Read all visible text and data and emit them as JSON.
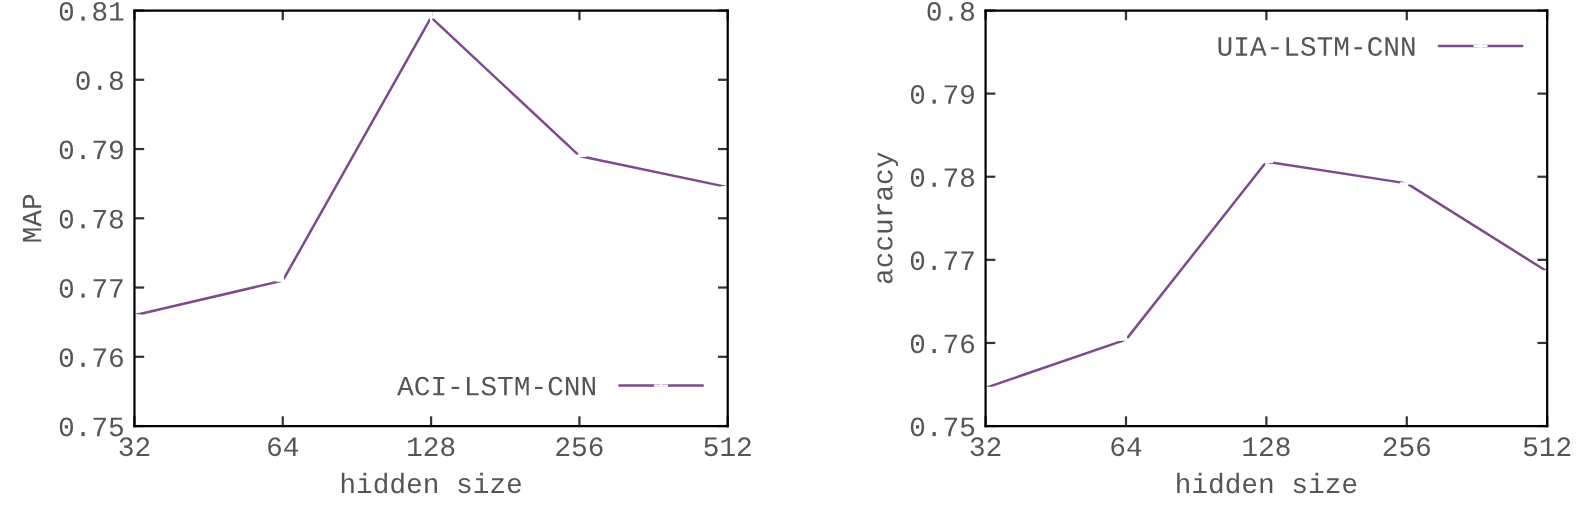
{
  "chart_data": [
    {
      "type": "line",
      "xlabel": "hidden size",
      "ylabel": "MAP",
      "categories": [
        "32",
        "64",
        "128",
        "256",
        "512"
      ],
      "series": [
        {
          "name": "ACI-LSTM-CNN",
          "color": "#7d4a8c",
          "values": [
            0.766,
            0.771,
            0.809,
            0.789,
            0.7845
          ]
        }
      ],
      "ylim": [
        0.75,
        0.81
      ],
      "yticks": [
        0.75,
        0.76,
        0.77,
        0.78,
        0.79,
        0.8,
        0.81
      ],
      "legend": "bottom right",
      "marker": "cross",
      "grid": false
    },
    {
      "type": "line",
      "xlabel": "hidden size",
      "ylabel": "accuracy",
      "categories": [
        "32",
        "64",
        "128",
        "256",
        "512"
      ],
      "series": [
        {
          "name": "UIA-LSTM-CNN",
          "color": "#7d4a8c",
          "values": [
            0.7546,
            0.7604,
            0.7818,
            0.7792,
            0.7686
          ]
        }
      ],
      "ylim": [
        0.75,
        0.8
      ],
      "yticks": [
        0.75,
        0.76,
        0.77,
        0.78,
        0.79,
        0.8
      ],
      "legend": "top right",
      "marker": "cross",
      "grid": false
    }
  ]
}
